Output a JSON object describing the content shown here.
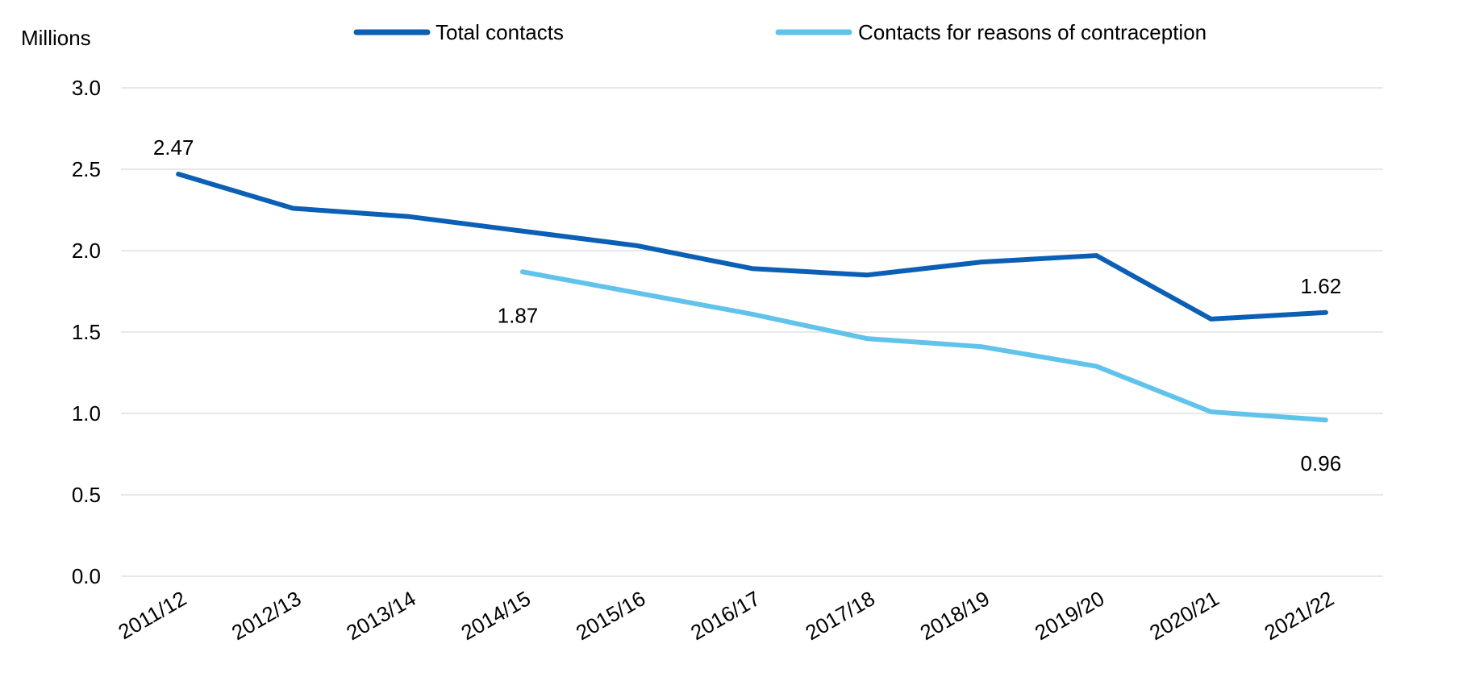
{
  "chart_data": {
    "type": "line",
    "title": "",
    "ylabel": "Millions",
    "xlabel": "",
    "categories": [
      "2011/12",
      "2012/13",
      "2013/14",
      "2014/15",
      "2015/16",
      "2016/17",
      "2017/18",
      "2018/19",
      "2019/20",
      "2020/21",
      "2021/22"
    ],
    "ylim": [
      0,
      3.0
    ],
    "yticks": [
      "0.0",
      "0.5",
      "1.0",
      "1.5",
      "2.0",
      "2.5",
      "3.0"
    ],
    "ytick_values": [
      0,
      0.5,
      1.0,
      1.5,
      2.0,
      2.5,
      3.0
    ],
    "grid": true,
    "legend_position": "top",
    "series": [
      {
        "name": "Total contacts",
        "color": "#0b5fb4",
        "values": [
          2.47,
          2.26,
          2.21,
          2.12,
          2.03,
          1.89,
          1.85,
          1.93,
          1.97,
          1.58,
          1.62
        ]
      },
      {
        "name": "Contacts for reasons of contraception",
        "color": "#62c3ea",
        "values": [
          null,
          null,
          null,
          1.87,
          1.74,
          1.61,
          1.46,
          1.41,
          1.29,
          1.01,
          0.96
        ]
      }
    ],
    "data_labels": [
      {
        "series": 0,
        "index": 0,
        "text": "2.47",
        "position": "above"
      },
      {
        "series": 0,
        "index": 10,
        "text": "1.62",
        "position": "above"
      },
      {
        "series": 1,
        "index": 3,
        "text": "1.87",
        "position": "below"
      },
      {
        "series": 1,
        "index": 10,
        "text": "0.96",
        "position": "below"
      }
    ]
  }
}
